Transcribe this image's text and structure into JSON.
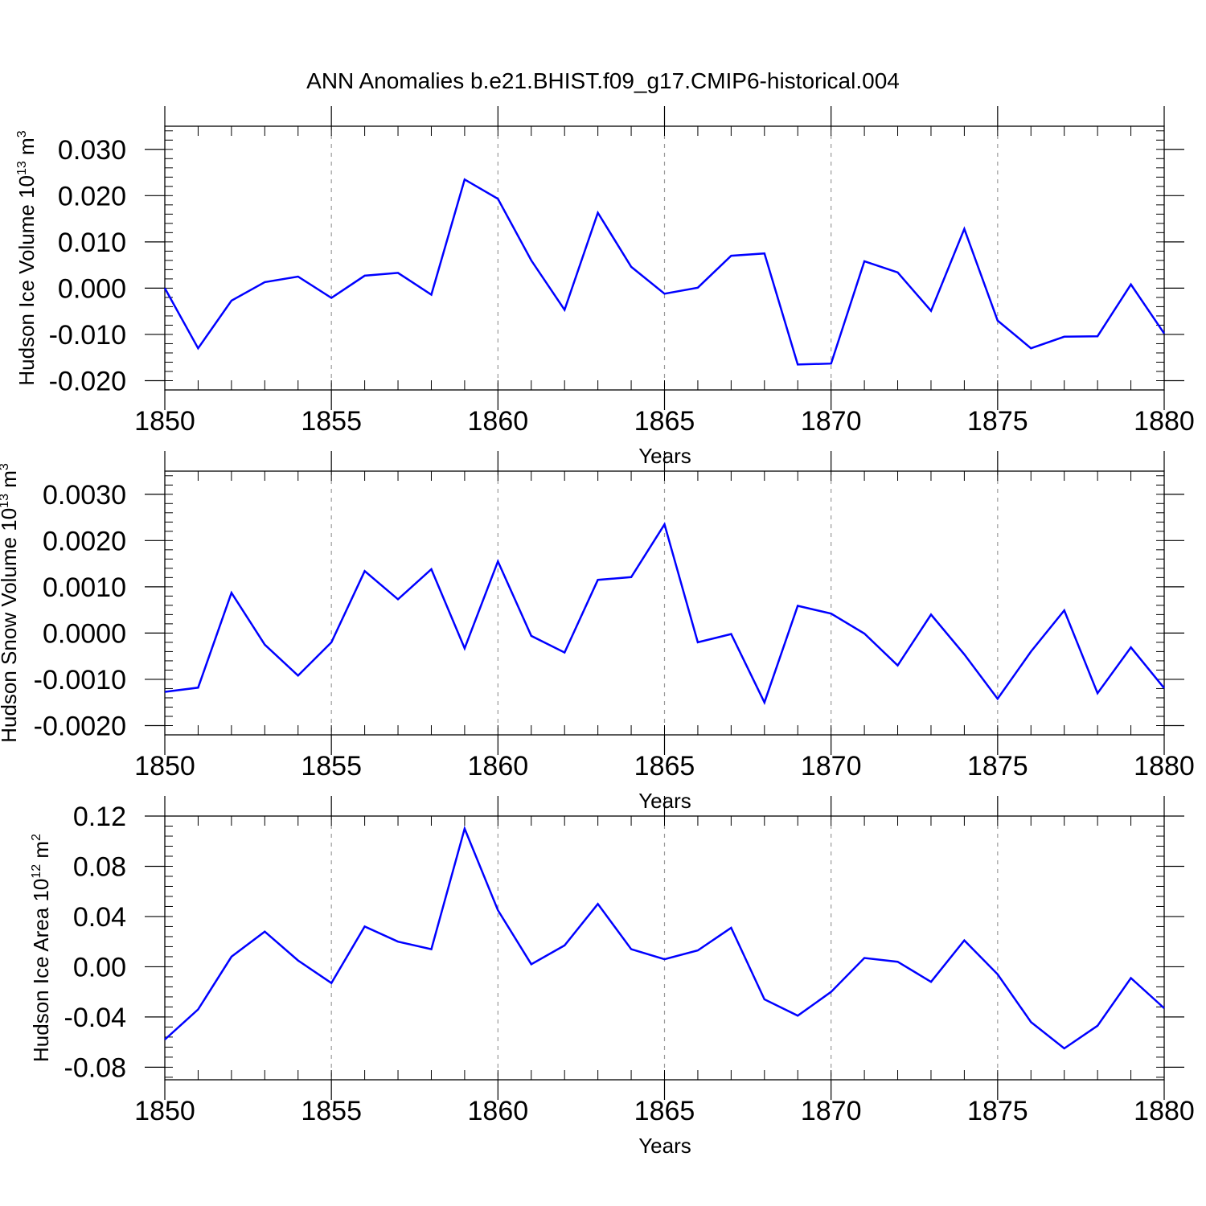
{
  "title": "ANN Anomalies b.e21.BHIST.f09_g17.CMIP6-historical.004",
  "colors": {
    "line": "#0000ff",
    "axis": "#000000",
    "grid": "#9a9a9a"
  },
  "chart_data": [
    {
      "type": "line",
      "ylabel_main": "Hudson Ice Volume 10",
      "ylabel_exp": "13",
      "ylabel_unit": " m",
      "ylabel_unit_exp": "3",
      "xlabel": "Years",
      "xlim": [
        1850,
        1880
      ],
      "ylim": [
        -0.022,
        0.035
      ],
      "xticks": [
        "1850",
        "1855",
        "1860",
        "1865",
        "1870",
        "1875",
        "1880"
      ],
      "yticks": [
        {
          "value": 0.03,
          "label": "0.030"
        },
        {
          "value": 0.02,
          "label": "0.020"
        },
        {
          "value": 0.01,
          "label": "0.010"
        },
        {
          "value": 0.0,
          "label": "0.000"
        },
        {
          "value": -0.01,
          "label": "-0.010"
        },
        {
          "value": -0.02,
          "label": "-0.020"
        }
      ],
      "grid_x": true,
      "x": [
        1850,
        1851,
        1852,
        1853,
        1854,
        1855,
        1856,
        1857,
        1858,
        1859,
        1860,
        1861,
        1862,
        1863,
        1864,
        1865,
        1866,
        1867,
        1868,
        1869,
        1870,
        1871,
        1872,
        1873,
        1874,
        1875,
        1876,
        1877,
        1878,
        1879,
        1880
      ],
      "y": [
        0.0,
        -0.013,
        -0.0027,
        0.0013,
        0.0025,
        -0.0021,
        0.0027,
        0.0033,
        -0.0014,
        0.0235,
        0.0193,
        0.006,
        -0.0047,
        0.0163,
        0.0046,
        -0.0012,
        0.0001,
        0.007,
        0.0075,
        -0.0165,
        -0.0163,
        0.0058,
        0.0034,
        -0.0049,
        0.0128,
        -0.007,
        -0.013,
        -0.0105,
        -0.0104,
        0.0008,
        -0.0098
      ]
    },
    {
      "type": "line",
      "ylabel_main": "Hudson Snow Volume 10",
      "ylabel_exp": "13",
      "ylabel_unit": " m",
      "ylabel_unit_exp": "3",
      "xlabel": "Years",
      "xlim": [
        1850,
        1880
      ],
      "ylim": [
        -0.0022,
        0.0035
      ],
      "xticks": [
        "1850",
        "1855",
        "1860",
        "1865",
        "1870",
        "1875",
        "1880"
      ],
      "yticks": [
        {
          "value": 0.003,
          "label": "0.0030"
        },
        {
          "value": 0.002,
          "label": "0.0020"
        },
        {
          "value": 0.001,
          "label": "0.0010"
        },
        {
          "value": 0.0,
          "label": "0.0000"
        },
        {
          "value": -0.001,
          "label": "-0.0010"
        },
        {
          "value": -0.002,
          "label": "-0.0020"
        }
      ],
      "grid_x": true,
      "x": [
        1850,
        1851,
        1852,
        1853,
        1854,
        1855,
        1856,
        1857,
        1858,
        1859,
        1860,
        1861,
        1862,
        1863,
        1864,
        1865,
        1866,
        1867,
        1868,
        1869,
        1870,
        1871,
        1872,
        1873,
        1874,
        1875,
        1876,
        1877,
        1878,
        1879,
        1880
      ],
      "y": [
        -0.00127,
        -0.00118,
        0.00087,
        -0.00025,
        -0.00092,
        -0.0002,
        0.00134,
        0.00073,
        0.00138,
        -0.00033,
        0.00155,
        -6e-05,
        -0.00042,
        0.00115,
        0.00121,
        0.00235,
        -0.0002,
        -2e-05,
        -0.0015,
        0.00059,
        0.00042,
        -1e-05,
        -0.0007,
        0.0004,
        -0.00046,
        -0.00142,
        -0.0004,
        0.00049,
        -0.0013,
        -0.00031,
        -0.00119
      ]
    },
    {
      "type": "line",
      "ylabel_main": "Hudson Ice Area 10",
      "ylabel_exp": "12",
      "ylabel_unit": " m",
      "ylabel_unit_exp": "2",
      "xlabel": "Years",
      "xlim": [
        1850,
        1880
      ],
      "ylim": [
        -0.09,
        0.12
      ],
      "xticks": [
        "1850",
        "1855",
        "1860",
        "1865",
        "1870",
        "1875",
        "1880"
      ],
      "yticks": [
        {
          "value": 0.12,
          "label": "0.12"
        },
        {
          "value": 0.08,
          "label": "0.08"
        },
        {
          "value": 0.04,
          "label": "0.04"
        },
        {
          "value": 0.0,
          "label": "0.00"
        },
        {
          "value": -0.04,
          "label": "-0.04"
        },
        {
          "value": -0.08,
          "label": "-0.08"
        }
      ],
      "grid_x": true,
      "x": [
        1850,
        1851,
        1852,
        1853,
        1854,
        1855,
        1856,
        1857,
        1858,
        1859,
        1860,
        1861,
        1862,
        1863,
        1864,
        1865,
        1866,
        1867,
        1868,
        1869,
        1870,
        1871,
        1872,
        1873,
        1874,
        1875,
        1876,
        1877,
        1878,
        1879,
        1880
      ],
      "y": [
        -0.058,
        -0.034,
        0.008,
        0.028,
        0.005,
        -0.013,
        0.032,
        0.02,
        0.014,
        0.11,
        0.045,
        0.002,
        0.017,
        0.05,
        0.014,
        0.006,
        0.013,
        0.031,
        -0.026,
        -0.039,
        -0.02,
        0.007,
        0.004,
        -0.012,
        0.021,
        -0.006,
        -0.044,
        -0.065,
        -0.047,
        -0.009,
        -0.033
      ]
    }
  ]
}
